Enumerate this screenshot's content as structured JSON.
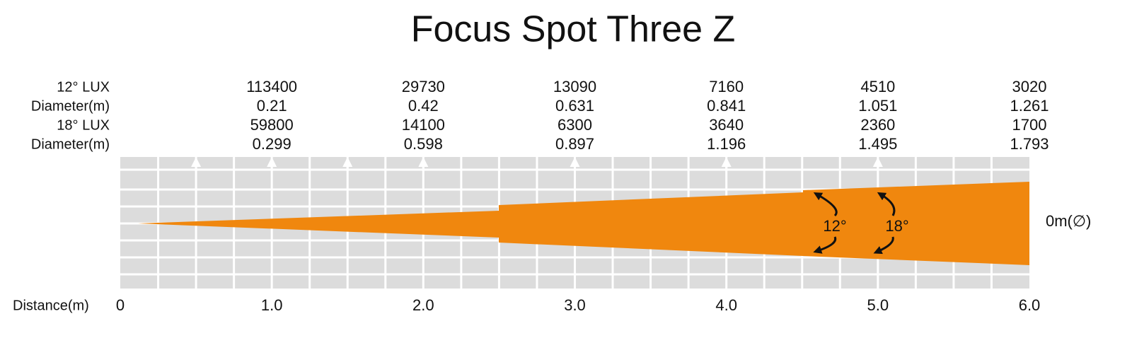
{
  "title": "Focus Spot Three Z",
  "row_labels": [
    "12° LUX",
    "Diameter(m)",
    "18° LUX",
    "Diameter(m)"
  ],
  "columns": [
    {
      "lux_12": "113400",
      "diameter_12": "0.21",
      "lux_18": "59800",
      "diameter_18": "0.299"
    },
    {
      "lux_12": "29730",
      "diameter_12": "0.42",
      "lux_18": "14100",
      "diameter_18": "0.598"
    },
    {
      "lux_12": "13090",
      "diameter_12": "0.631",
      "lux_18": "6300",
      "diameter_18": "0.897"
    },
    {
      "lux_12": "7160",
      "diameter_12": "0.841",
      "lux_18": "3640",
      "diameter_18": "1.196"
    },
    {
      "lux_12": "4510",
      "diameter_12": "1.051",
      "lux_18": "2360",
      "diameter_18": "1.495"
    },
    {
      "lux_12": "3020",
      "diameter_12": "1.261",
      "lux_18": "1700",
      "diameter_18": "1.793"
    }
  ],
  "distance_label": "Distance(m)",
  "distance_ticks": [
    "0",
    "1.0",
    "2.0",
    "3.0",
    "4.0",
    "5.0",
    "6.0"
  ],
  "center_label": "0m(∅)",
  "angle_labels": [
    "12°",
    "18°"
  ]
}
